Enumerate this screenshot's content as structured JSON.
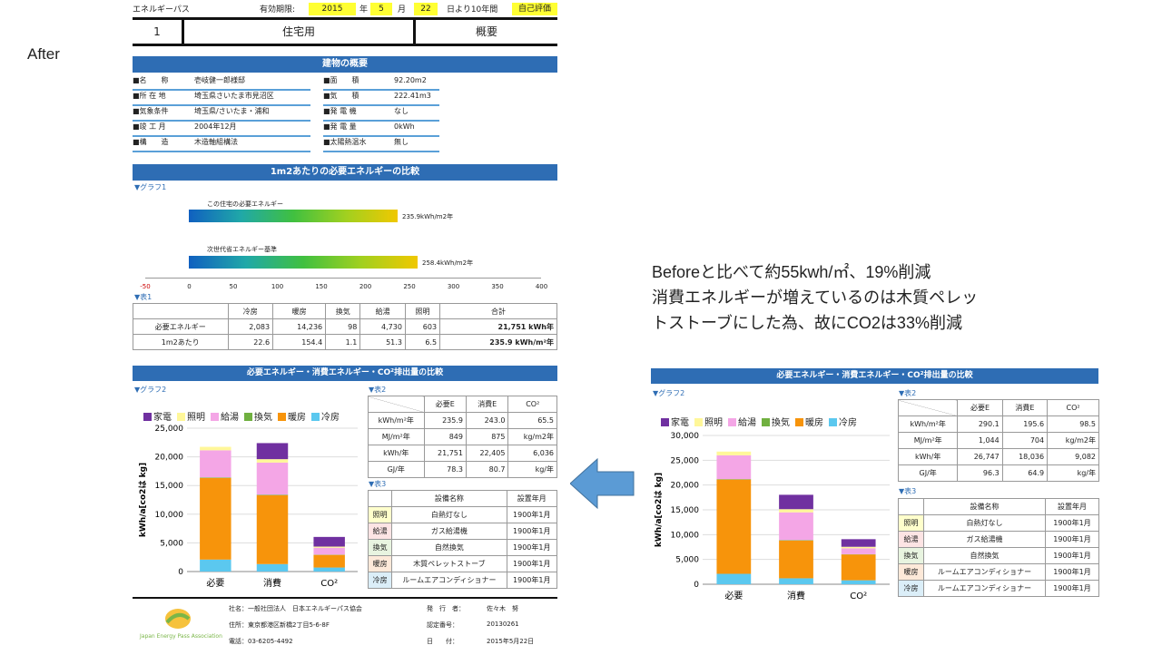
{
  "page_label": "After",
  "header": {
    "title": "エネルギーパス",
    "validity_label": "有効期限:",
    "year": "2015",
    "year_unit": "年",
    "month": "5",
    "month_unit": "月",
    "day": "22",
    "suffix": "日より10年間",
    "badge": "自己評価"
  },
  "id_row": {
    "number": "1",
    "type": "住宅用",
    "summary": "概要"
  },
  "building": {
    "title": "建物の概要",
    "left": [
      {
        "k": "■名　　称",
        "v": "壱岐健一郎様邸"
      },
      {
        "k": "■所 在 地",
        "v": "埼玉県さいたま市見沼区"
      },
      {
        "k": "■気象条件",
        "v": "埼玉県/さいたま・浦和"
      },
      {
        "k": "■竣 工 月",
        "v": "2004年12月"
      },
      {
        "k": "■構　　造",
        "v": "木造軸組構法"
      }
    ],
    "right": [
      {
        "k": "■面　　積",
        "v": "92.20m2"
      },
      {
        "k": "■気　　積",
        "v": "222.41m3"
      },
      {
        "k": "■発 電 機",
        "v": "なし"
      },
      {
        "k": "■発 電 量",
        "v": "0kWh"
      },
      {
        "k": "■太陽熱温水",
        "v": "無し"
      }
    ]
  },
  "energy_section": {
    "title": "1m2あたりの必要エネルギーの比較",
    "graph_label": "▼グラフ1",
    "bar1_label": "この住宅の必要エネルギー",
    "bar1_value": "235.9kWh/m2年",
    "bar2_label": "次世代省エネルギー基準",
    "bar2_value": "258.4kWh/m2年",
    "axis": [
      "-50",
      "0",
      "50",
      "100",
      "150",
      "200",
      "250",
      "300",
      "350",
      "400"
    ],
    "table_label": "▼表1",
    "table1": {
      "headers": [
        "",
        "冷房",
        "暖房",
        "換気",
        "給湯",
        "照明",
        "合計"
      ],
      "rows": [
        [
          "必要エネルギー",
          "2,083",
          "14,236",
          "98",
          "4,730",
          "603",
          "21,751 kWh年"
        ],
        [
          "1m2あたり",
          "22.6",
          "154.4",
          "1.1",
          "51.3",
          "6.5",
          "235.9 kWh/m²年"
        ]
      ]
    }
  },
  "compare_after": {
    "title": "必要エネルギー・消費エネルギー・CO²排出量の比較",
    "graph_label": "▼グラフ2",
    "table2_label": "▼表2",
    "table3_label": "▼表3",
    "ylabel": "kWh/a[co2は kg]",
    "table2": {
      "headers": [
        "",
        "必要E",
        "消費E",
        "CO²"
      ],
      "rows": [
        [
          "kWh/m²年",
          "235.9",
          "243.0",
          "65.5"
        ],
        [
          "MJ/m²年",
          "849",
          "875",
          "kg/m2年"
        ],
        [
          "kWh/年",
          "21,751",
          "22,405",
          "6,036"
        ],
        [
          "GJ/年",
          "78.3",
          "80.7",
          "kg/年"
        ]
      ]
    },
    "table3": {
      "headers": [
        "",
        "設備名称",
        "設置年月"
      ],
      "rows": [
        [
          "照明",
          "白熱灯なし",
          "1900年1月"
        ],
        [
          "給湯",
          "ガス給湯機",
          "1900年1月"
        ],
        [
          "換気",
          "自然換気",
          "1900年1月"
        ],
        [
          "暖房",
          "木質ペレットストーブ",
          "1900年1月"
        ],
        [
          "冷房",
          "ルームエアコンディショナー",
          "1900年1月"
        ]
      ]
    }
  },
  "compare_before": {
    "title": "必要エネルギー・消費エネルギー・CO²排出量の比較",
    "graph_label": "▼グラフ2",
    "table2_label": "▼表2",
    "table3_label": "▼表3",
    "ylabel": "kWh/a[co2は kg]",
    "table2": {
      "headers": [
        "",
        "必要E",
        "消費E",
        "CO²"
      ],
      "rows": [
        [
          "kWh/m²年",
          "290.1",
          "195.6",
          "98.5"
        ],
        [
          "MJ/m²年",
          "1,044",
          "704",
          "kg/m2年"
        ],
        [
          "kWh/年",
          "26,747",
          "18,036",
          "9,082"
        ],
        [
          "GJ/年",
          "96.3",
          "64.9",
          "kg/年"
        ]
      ]
    },
    "table3": {
      "headers": [
        "",
        "設備名称",
        "設置年月"
      ],
      "rows": [
        [
          "照明",
          "白熱灯なし",
          "1900年1月"
        ],
        [
          "給湯",
          "ガス給湯機",
          "1900年1月"
        ],
        [
          "換気",
          "自然換気",
          "1900年1月"
        ],
        [
          "暖房",
          "ルームエアコンディショナー",
          "1900年1月"
        ],
        [
          "冷房",
          "ルームエアコンディショナー",
          "1900年1月"
        ]
      ]
    }
  },
  "colors": {
    "家電": "#7030a0",
    "照明": "#fff799",
    "給湯": "#f4a6e6",
    "換気": "#70b040",
    "暖房": "#f7940b",
    "冷房": "#5bc8ef",
    "bar": "#2e6db4"
  },
  "chart_data": [
    {
      "type": "bar",
      "stacked": true,
      "categories": [
        "必要",
        "消費",
        "CO²"
      ],
      "ylim": [
        0,
        25000
      ],
      "yticks": [
        "0",
        "5,000",
        "10,000",
        "15,000",
        "20,000",
        "25,000"
      ],
      "series": [
        {
          "name": "冷房",
          "values": [
            2083,
            1300,
            700
          ]
        },
        {
          "name": "暖房",
          "values": [
            14236,
            12000,
            2200
          ]
        },
        {
          "name": "換気",
          "values": [
            98,
            100,
            50
          ]
        },
        {
          "name": "給湯",
          "values": [
            4730,
            5600,
            1200
          ]
        },
        {
          "name": "照明",
          "values": [
            603,
            600,
            200
          ]
        },
        {
          "name": "家電",
          "values": [
            0,
            2800,
            1686
          ]
        }
      ]
    },
    {
      "type": "bar",
      "stacked": true,
      "categories": [
        "必要",
        "消費",
        "CO²"
      ],
      "ylim": [
        0,
        30000
      ],
      "yticks": [
        "0",
        "5,000",
        "10,000",
        "15,000",
        "20,000",
        "25,000",
        "30,000"
      ],
      "series": [
        {
          "name": "冷房",
          "values": [
            2100,
            1200,
            800
          ]
        },
        {
          "name": "暖房",
          "values": [
            19000,
            7600,
            5200
          ]
        },
        {
          "name": "換気",
          "values": [
            100,
            100,
            50
          ]
        },
        {
          "name": "給湯",
          "values": [
            4800,
            5600,
            1200
          ]
        },
        {
          "name": "照明",
          "values": [
            747,
            636,
            300
          ]
        },
        {
          "name": "家電",
          "values": [
            0,
            2900,
            1532
          ]
        }
      ]
    }
  ],
  "note": {
    "line1": "Beforeと比べて約55kwh/㎡、19%削減",
    "line2": "消費エネルギーが増えているのは木質ペレッ",
    "line3": "トストーブにした為、故にCO2は33%削減"
  },
  "footer": {
    "org": "社名：一般社団法人　日本エネルギーパス協会",
    "addr": "住所：東京都港区新橋2丁目5-6-8F",
    "tel": "電話：03-6205-4492",
    "issuer_k": "発　行　者：",
    "issuer_v": "佐々木　努",
    "cert_k": "認定番号：",
    "cert_v": "20130261",
    "date_k": "日　　付：",
    "date_v": "2015年5月22日",
    "logo_text": "Japan Energy Pass Association"
  }
}
